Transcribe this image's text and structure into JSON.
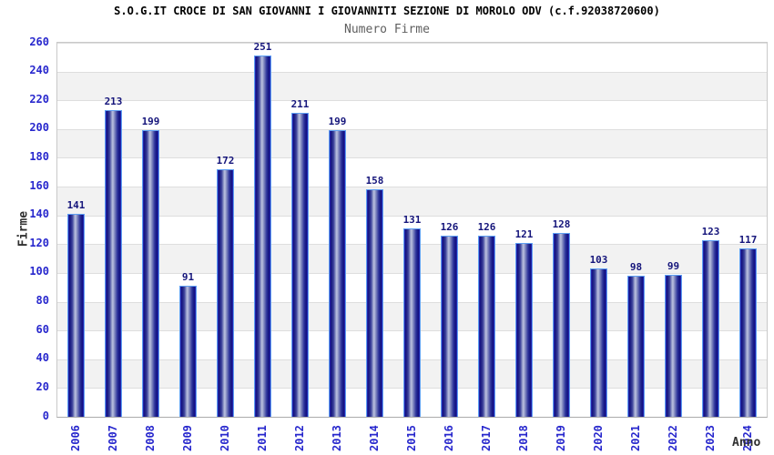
{
  "header": {
    "title": "S.O.G.IT CROCE DI SAN GIOVANNI I GIOVANNITI SEZIONE DI MOROLO ODV (c.f.92038720600)",
    "subtitle": "Numero Firme"
  },
  "chart_data": {
    "type": "bar",
    "title": "S.O.G.IT CROCE DI SAN GIOVANNI I GIOVANNITI SEZIONE DI MOROLO ODV (c.f.92038720600)",
    "subtitle": "Numero Firme",
    "xlabel": "Anno",
    "ylabel": "Firme",
    "categories": [
      "2006",
      "2007",
      "2008",
      "2009",
      "2010",
      "2011",
      "2012",
      "2013",
      "2014",
      "2015",
      "2016",
      "2017",
      "2018",
      "2019",
      "2020",
      "2021",
      "2022",
      "2023",
      "2024"
    ],
    "values": [
      141,
      213,
      199,
      91,
      172,
      251,
      211,
      199,
      158,
      131,
      126,
      126,
      121,
      128,
      103,
      98,
      99,
      123,
      117
    ],
    "ylim": [
      0,
      260
    ],
    "ytick_step": 20,
    "grid": "horizontal-bands",
    "legend": "none",
    "colors": {
      "tick_label": "#2727cd",
      "value_label": "#15157b",
      "bar_dark": "#10107c",
      "bar_light": "#bcc2e0",
      "bar_cap": "#5e9ff2",
      "band_gray": "#f2f2f2",
      "band_white": "#ffffff",
      "gridline": "#dedede",
      "title": "#000000",
      "subtitle": "#5f5f5f",
      "axis_title": "#303030"
    }
  }
}
